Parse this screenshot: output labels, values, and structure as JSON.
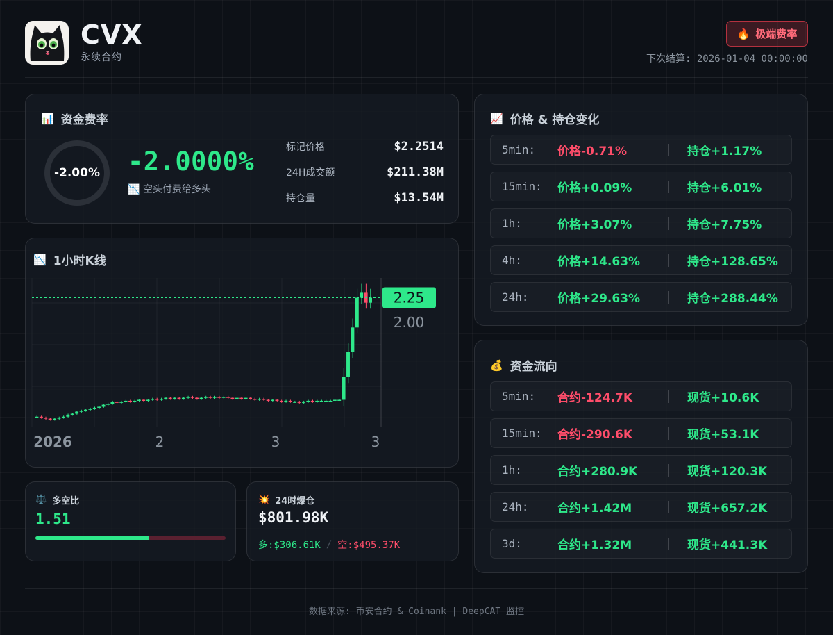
{
  "header": {
    "symbol": "CVX",
    "subtitle": "永续合约",
    "badge_label": "极端费率",
    "badge_icon": "fire-icon",
    "next_settlement_label": "下次结算:",
    "next_settlement_time": "2026-01-04 00:00:00"
  },
  "funding": {
    "title": "资金费率",
    "ring_label": "-2.00%",
    "rate": "-2.0000%",
    "note": "空头付费给多头",
    "stats": [
      {
        "label": "标记价格",
        "value": "$2.2514"
      },
      {
        "label": "24H成交额",
        "value": "$211.38M"
      },
      {
        "label": "持仓量",
        "value": "$13.54M"
      }
    ]
  },
  "kline": {
    "title": "1小时K线",
    "chart_data": {
      "type": "candlestick",
      "x_tick_labels": [
        "2026",
        "2",
        "3",
        "3"
      ],
      "y_tick_labels": [
        "2.00"
      ],
      "current_price_label": "2.25",
      "current_price": 2.25,
      "close_approx": [
        1.05,
        1.04,
        1.03,
        1.02,
        1.03,
        1.04,
        1.05,
        1.07,
        1.08,
        1.1,
        1.11,
        1.12,
        1.13,
        1.14,
        1.15,
        1.17,
        1.18,
        1.2,
        1.19,
        1.2,
        1.21,
        1.2,
        1.21,
        1.22,
        1.21,
        1.22,
        1.23,
        1.22,
        1.23,
        1.24,
        1.23,
        1.24,
        1.23,
        1.24,
        1.25,
        1.24,
        1.23,
        1.24,
        1.25,
        1.24,
        1.25,
        1.24,
        1.25,
        1.24,
        1.23,
        1.24,
        1.23,
        1.24,
        1.23,
        1.22,
        1.23,
        1.22,
        1.21,
        1.22,
        1.21,
        1.2,
        1.21,
        1.2,
        1.2,
        1.19,
        1.2,
        1.21,
        1.2,
        1.21,
        1.21,
        1.21,
        1.21,
        1.22,
        1.22,
        1.45,
        1.7,
        1.95,
        2.25,
        2.3,
        2.2,
        2.25
      ]
    }
  },
  "price_oi": {
    "title": "价格 & 持仓变化",
    "rows": [
      {
        "label": "5min:",
        "price": "价格-0.71%",
        "price_dir": "down",
        "oi": "持仓+1.17%",
        "oi_dir": "up"
      },
      {
        "label": "15min:",
        "price": "价格+0.09%",
        "price_dir": "up",
        "oi": "持仓+6.01%",
        "oi_dir": "up"
      },
      {
        "label": "1h:",
        "price": "价格+3.07%",
        "price_dir": "up",
        "oi": "持仓+7.75%",
        "oi_dir": "up"
      },
      {
        "label": "4h:",
        "price": "价格+14.63%",
        "price_dir": "up",
        "oi": "持仓+128.65%",
        "oi_dir": "up"
      },
      {
        "label": "24h:",
        "price": "价格+29.63%",
        "price_dir": "up",
        "oi": "持仓+288.44%",
        "oi_dir": "up"
      }
    ]
  },
  "flow": {
    "title": "资金流向",
    "rows": [
      {
        "label": "5min:",
        "contract": "合约-124.7K",
        "contract_dir": "down",
        "spot": "现货+10.6K",
        "spot_dir": "up"
      },
      {
        "label": "15min:",
        "contract": "合约-290.6K",
        "contract_dir": "down",
        "spot": "现货+53.1K",
        "spot_dir": "up"
      },
      {
        "label": "1h:",
        "contract": "合约+280.9K",
        "contract_dir": "up",
        "spot": "现货+120.3K",
        "spot_dir": "up"
      },
      {
        "label": "24h:",
        "contract": "合约+1.42M",
        "contract_dir": "up",
        "spot": "现货+657.2K",
        "spot_dir": "up"
      },
      {
        "label": "3d:",
        "contract": "合约+1.32M",
        "contract_dir": "up",
        "spot": "现货+441.3K",
        "spot_dir": "up"
      }
    ]
  },
  "long_short": {
    "title": "多空比",
    "value": "1.51",
    "long_fraction": 0.6
  },
  "liquidation": {
    "title": "24时爆仓",
    "total": "$801.98K",
    "long": "多:$306.61K",
    "short": "空:$495.37K"
  },
  "footer": {
    "text": "数据来源: 币安合约 & Coinank | DeepCAT 监控"
  },
  "colors": {
    "up": "#2ee88a",
    "down": "#ff4d6a",
    "bg": "#0d1117"
  }
}
